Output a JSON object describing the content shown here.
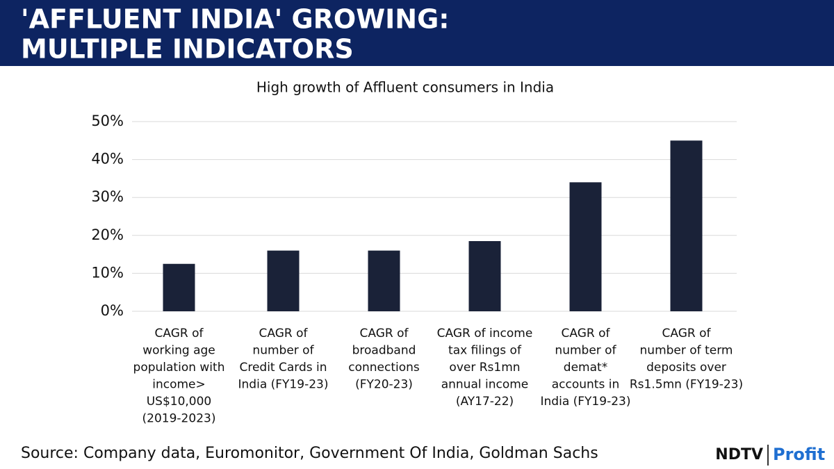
{
  "header": {
    "title_lines": [
      "'AFFLUENT INDIA' GROWING:",
      "MULTIPLE INDICATORS"
    ]
  },
  "chart_data": {
    "type": "bar",
    "title": "High growth of Affluent consumers in India",
    "categories": [
      [
        "CAGR of",
        "working age",
        "population with",
        "income>",
        "US$10,000",
        "(2019-2023)"
      ],
      [
        "CAGR of",
        "number of",
        "Credit Cards in",
        "India (FY19-23)"
      ],
      [
        "CAGR of",
        "broadband",
        "connections",
        "(FY20-23)"
      ],
      [
        "CAGR of income",
        "tax filings of",
        "over Rs1mn",
        "annual income",
        "(AY17-22)"
      ],
      [
        "CAGR of",
        "number of",
        "demat*",
        "accounts in",
        "India (FY19-23)"
      ],
      [
        "CAGR of",
        "number of term",
        "deposits over",
        "Rs1.5mn (FY19-23)"
      ]
    ],
    "values": [
      12.5,
      16,
      16,
      18.5,
      34,
      45
    ],
    "color": "#1a2238",
    "ylim": [
      0,
      50
    ],
    "yticks": [
      {
        "value": 0,
        "label": "0%"
      },
      {
        "value": 10,
        "label": "10%"
      },
      {
        "value": 20,
        "label": "20%"
      },
      {
        "value": 30,
        "label": "30%"
      },
      {
        "value": 40,
        "label": "40%"
      },
      {
        "value": 50,
        "label": "50%"
      }
    ],
    "grid": true
  },
  "source": "Source: Company data, Euromonitor, Government Of India, Goldman Sachs",
  "logo": {
    "brand": "NDTV",
    "product": "Profit"
  }
}
